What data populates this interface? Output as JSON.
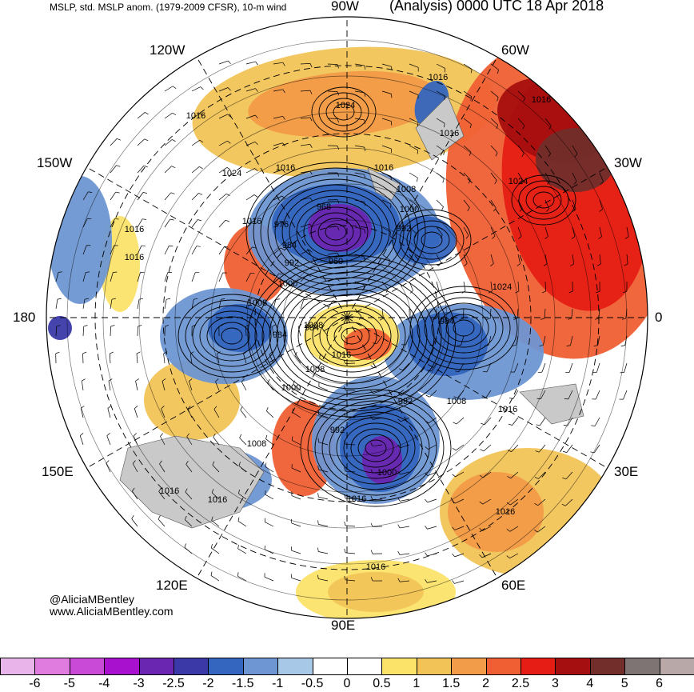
{
  "header": {
    "left_title": "MSLP, std. MSLP anom. (1979-2009 CFSR), 10-m wind",
    "right_title": "(Analysis) 0000 UTC 18 Apr 2018"
  },
  "longitude_labels": {
    "top": "90W",
    "top_left": "120W",
    "top_right": "60W",
    "upper_left": "150W",
    "upper_right": "30W",
    "left": "180",
    "right": "0",
    "lower_left": "150E",
    "lower_right": "30E",
    "bottom_left": "120E",
    "bottom_right": "60E",
    "bottom": "90E"
  },
  "credits": {
    "handle": "@AliciaMBentley",
    "website": "www.AliciaMBentley.com"
  },
  "isobar_labels": [
    "1016",
    "1024",
    "1016",
    "1016",
    "1024",
    "1016",
    "1016",
    "1008",
    "1016",
    "1024",
    "1016",
    "968",
    "976",
    "984",
    "992",
    "960",
    "1016",
    "1000",
    "992",
    "1008",
    "1016",
    "1024",
    "1008",
    "984",
    "1000",
    "984",
    "1016",
    "984",
    "1008",
    "1000",
    "992",
    "1008",
    "1016",
    "992",
    "1008",
    "1000",
    "1016",
    "1016",
    "1016",
    "1016",
    "1016"
  ],
  "colorbar": {
    "label": "std. MSLP anom.",
    "ticks": [
      "-6",
      "-5",
      "-4",
      "-3",
      "-2.5",
      "-2",
      "-1.5",
      "-1",
      "-0.5",
      "0",
      "0.5",
      "1",
      "1.5",
      "2",
      "2.5",
      "3",
      "4",
      "5",
      "6"
    ],
    "colors": [
      "#e9b4e9",
      "#e07be0",
      "#c94ad6",
      "#a812cf",
      "#6a26b0",
      "#3b39a8",
      "#3465bf",
      "#6e96d2",
      "#a7c8e6",
      "#ffffff",
      "#ffffff",
      "#fbe36a",
      "#f2c457",
      "#f29b48",
      "#ef5f33",
      "#e51d14",
      "#a60f0f",
      "#712e2a",
      "#7e7474",
      "#b8a8a8"
    ]
  }
}
